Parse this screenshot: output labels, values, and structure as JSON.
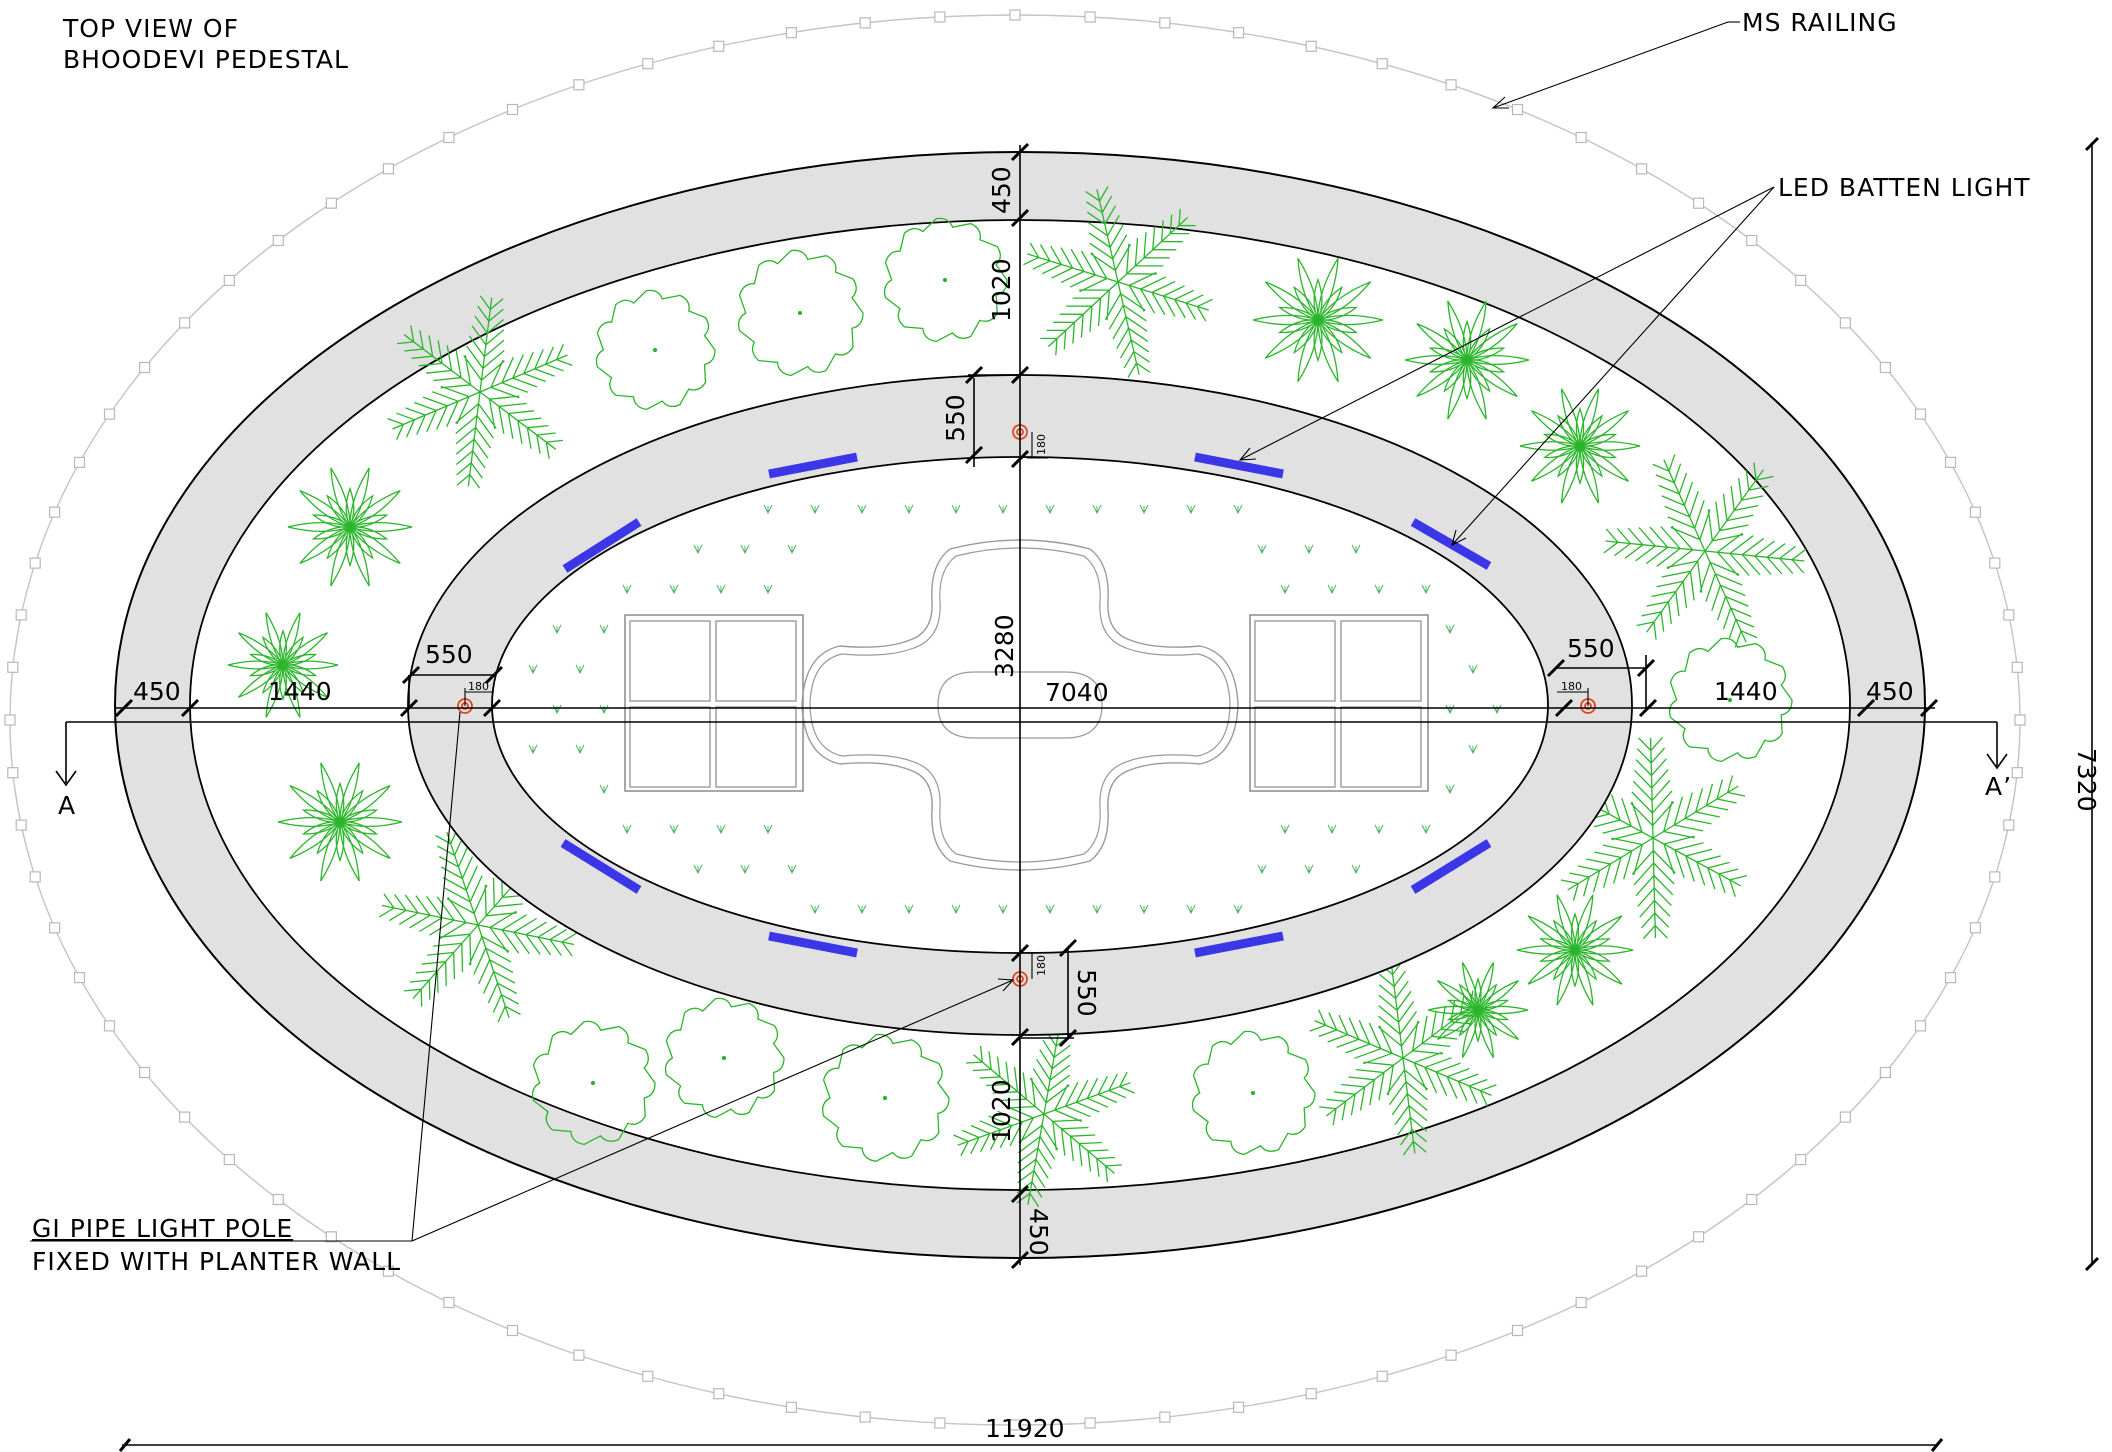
{
  "title": {
    "line1": "TOP VIEW OF",
    "line2": "BHOODEVI PEDESTAL"
  },
  "callouts": {
    "railing": "MS RAILING",
    "led": "LED BATTEN LIGHT",
    "pole_line1": "GI PIPE LIGHT POLE",
    "pole_line2": "FIXED WITH PLANTER WALL"
  },
  "dimensions": {
    "overall_width": "11920",
    "overall_height": "7320",
    "outer_wall_left": "450",
    "planter_left": "1440",
    "inner_wall_left": "550",
    "inner_length": "7040",
    "inner_wall_right": "550",
    "planter_right": "1440",
    "outer_wall_right": "450",
    "outer_wall_top": "450",
    "planter_top": "1020",
    "inner_wall_top": "550",
    "inner_height": "3280",
    "inner_wall_bottom": "550",
    "planter_bottom": "1020",
    "outer_wall_bottom": "450",
    "pole_offset": "180"
  },
  "section_marks": {
    "left": "A",
    "right": "A’"
  },
  "colors": {
    "wall_fill": "#e1e1e1",
    "plant": "#2bb52b",
    "led": "#3b36e6",
    "pole": "#e0451f",
    "railing": "#c4c4c4"
  }
}
